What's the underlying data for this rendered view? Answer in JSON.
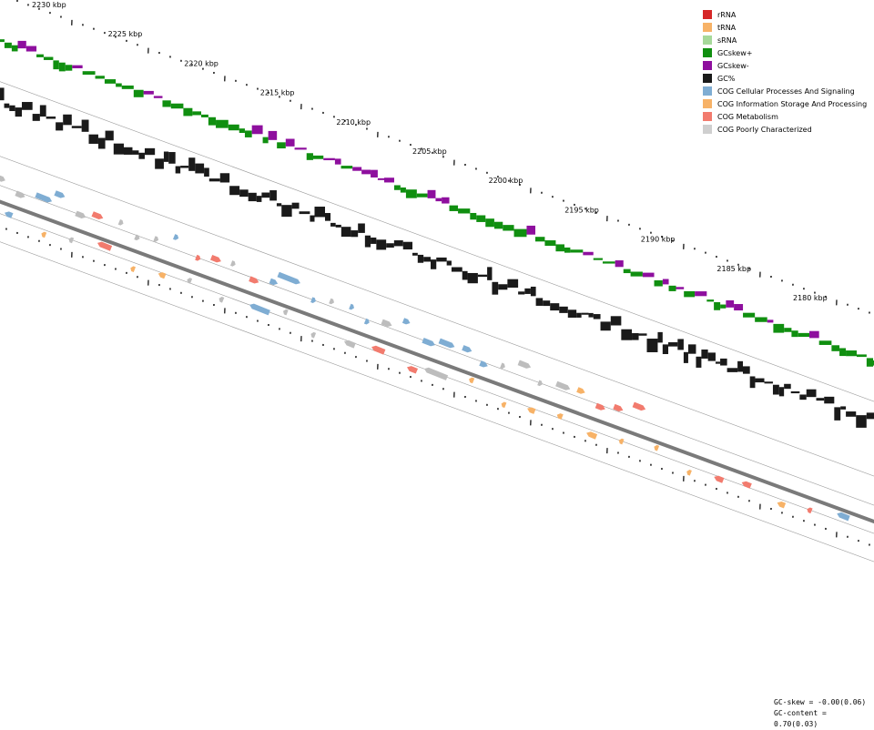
{
  "ruler": {
    "labels": [
      "2230 kbp",
      "2225 kbp",
      "2220 kbp",
      "2215 kbp",
      "2210 kbp",
      "2205 kbp",
      "2200 kbp",
      "2195 kbp",
      "2190 kbp",
      "2185 kbp",
      "2180 kbp"
    ],
    "label_kbp": [
      2230,
      2225,
      2220,
      2215,
      2210,
      2205,
      2200,
      2195,
      2190,
      2185,
      2180
    ]
  },
  "legend": {
    "items": [
      {
        "label": "rRNA",
        "color": "#d62728",
        "icon": "rrna-swatch"
      },
      {
        "label": "tRNA",
        "color": "#f7b267",
        "icon": "trna-swatch"
      },
      {
        "label": "sRNA",
        "color": "#a6d99a",
        "icon": "srna-swatch"
      },
      {
        "label": "GCskew+",
        "color": "#108f10",
        "icon": "gcskew-plus-swatch"
      },
      {
        "label": "GCskew-",
        "color": "#8e0f9e",
        "icon": "gcskew-minus-swatch"
      },
      {
        "label": "GC%",
        "color": "#1a1a1a",
        "icon": "gc-percent-swatch"
      },
      {
        "label": "COG Cellular Processes And Signaling",
        "color": "#7fadd3",
        "icon": "cog-cellular-swatch"
      },
      {
        "label": "COG Information Storage And Processing",
        "color": "#f7b267",
        "icon": "cog-information-swatch"
      },
      {
        "label": "COG Metabolism",
        "color": "#f27b6e",
        "icon": "cog-metabolism-swatch"
      },
      {
        "label": "COG Poorly Characterized",
        "color": "#cfcfcf",
        "icon": "cog-poorly-swatch"
      }
    ]
  },
  "stats": {
    "gc_skew": "GC-skew = -0.00(0.06)",
    "gc_content": "GC-content = 0.70(0.03)"
  },
  "colors": {
    "gcskew_plus": "#108f10",
    "gcskew_minus": "#8e0f9e",
    "gc_content": "#1a1a1a",
    "backbone": "#7a7a7a",
    "track_line": "#9a9a9a",
    "cog_cellular": "#7fadd3",
    "cog_information": "#f7b267",
    "cog_metabolism": "#f27b6e",
    "cog_poorly": "#bdbdbd"
  },
  "genes": {
    "forward": [
      {
        "cog": "poorly",
        "len": 0.9
      },
      {
        "cog": "poorly",
        "len": 1.2
      },
      {
        "cog": "cellular",
        "len": 2.1
      },
      {
        "cog": "cellular",
        "len": 1.3
      },
      {
        "cog": "poorly",
        "len": 1.3
      },
      {
        "cog": "metabolism",
        "len": 1.4
      },
      {
        "cog": "poorly",
        "len": 0.4
      },
      {
        "cog": "poorly",
        "len": 0.6
      },
      {
        "cog": "poorly",
        "len": 0.5
      },
      {
        "cog": "cellular",
        "len": 0.6
      },
      {
        "cog": "metabolism",
        "len": 0.6
      },
      {
        "cog": "metabolism",
        "len": 1.3
      },
      {
        "cog": "poorly",
        "len": 0.4
      },
      {
        "cog": "metabolism",
        "len": 1.2
      },
      {
        "cog": "cellular",
        "len": 1.0
      },
      {
        "cog": "cellular",
        "len": 2.9
      },
      {
        "cog": "cellular",
        "len": 0.5
      },
      {
        "cog": "poorly",
        "len": 0.5
      },
      {
        "cog": "cellular",
        "len": 0.3
      },
      {
        "cog": "cellular",
        "len": 0.4
      },
      {
        "cog": "poorly",
        "len": 1.3
      },
      {
        "cog": "cellular",
        "len": 0.9
      },
      {
        "cog": "cellular",
        "len": 1.6
      },
      {
        "cog": "cellular",
        "len": 2.0
      },
      {
        "cog": "cellular",
        "len": 1.2
      },
      {
        "cog": "cellular",
        "len": 1.0
      },
      {
        "cog": "poorly",
        "len": 0.3
      },
      {
        "cog": "poorly",
        "len": 1.6
      },
      {
        "cog": "poorly",
        "len": 0.3
      },
      {
        "cog": "poorly",
        "len": 1.8
      },
      {
        "cog": "information",
        "len": 1.0
      },
      {
        "cog": "metabolism",
        "len": 1.2
      },
      {
        "cog": "metabolism",
        "len": 1.2
      },
      {
        "cog": "metabolism",
        "len": 1.6
      }
    ],
    "reverse": [
      {
        "cog": "cellular",
        "len": 1.0
      },
      {
        "cog": "information",
        "len": 0.5
      },
      {
        "cog": "poorly",
        "len": 0.4
      },
      {
        "cog": "metabolism",
        "len": 1.8
      },
      {
        "cog": "information",
        "len": 0.3
      },
      {
        "cog": "information",
        "len": 0.9
      },
      {
        "cog": "poorly",
        "len": 0.3
      },
      {
        "cog": "poorly",
        "len": 0.3
      },
      {
        "cog": "cellular",
        "len": 2.6
      },
      {
        "cog": "poorly",
        "len": 0.5
      },
      {
        "cog": "poorly",
        "len": 0.3
      },
      {
        "cog": "poorly",
        "len": 1.4
      },
      {
        "cog": "metabolism",
        "len": 1.7
      },
      {
        "cog": "metabolism",
        "len": 1.3
      },
      {
        "cog": "poorly",
        "len": 3.0
      },
      {
        "cog": "information",
        "len": 0.6
      },
      {
        "cog": "information",
        "len": 0.4
      },
      {
        "cog": "information",
        "len": 1.0
      },
      {
        "cog": "information",
        "len": 0.7
      },
      {
        "cog": "information",
        "len": 1.3
      },
      {
        "cog": "information",
        "len": 0.4
      },
      {
        "cog": "information",
        "len": 0.3
      },
      {
        "cog": "information",
        "len": 0.3
      },
      {
        "cog": "metabolism",
        "len": 1.2
      },
      {
        "cog": "metabolism",
        "len": 1.2
      },
      {
        "cog": "information",
        "len": 1.0
      },
      {
        "cog": "metabolism",
        "len": 0.6
      },
      {
        "cog": "cellular",
        "len": 1.6
      }
    ]
  }
}
